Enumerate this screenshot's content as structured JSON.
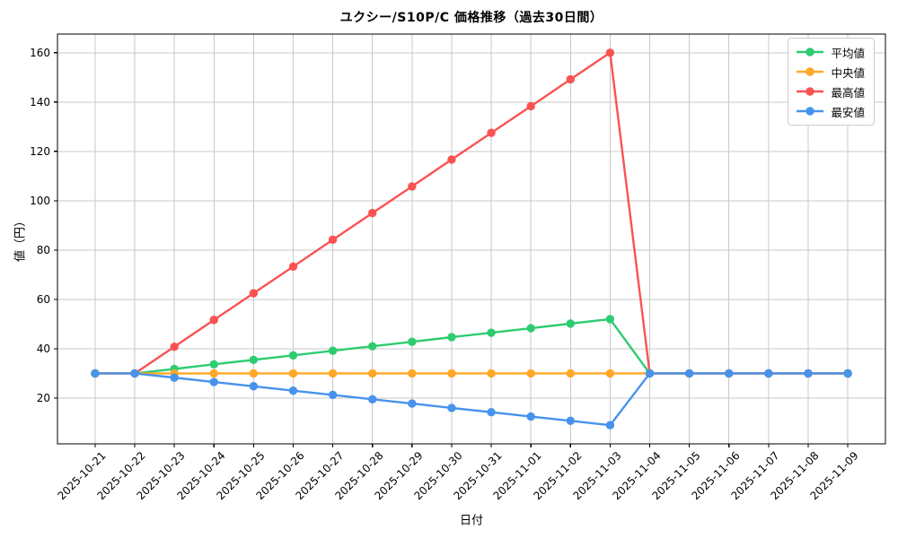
{
  "figure": {
    "background": "#ffffff",
    "spine_color": "#000000",
    "grid_color": "#c9c9c9",
    "tick_color": "#000000",
    "legend_border_color": "#cccccc"
  },
  "chart_data": {
    "type": "line",
    "title": "ユクシー/S10P/C 価格推移（過去30日間）",
    "xlabel": "日付",
    "ylabel": "値（円）",
    "categories": [
      "2025-10-21",
      "2025-10-22",
      "2025-10-23",
      "2025-10-24",
      "2025-10-25",
      "2025-10-26",
      "2025-10-27",
      "2025-10-28",
      "2025-10-29",
      "2025-10-30",
      "2025-10-31",
      "2025-11-01",
      "2025-11-02",
      "2025-11-03",
      "2025-11-04",
      "2025-11-05",
      "2025-11-06",
      "2025-11-07",
      "2025-11-08",
      "2025-11-09"
    ],
    "series": [
      {
        "name": "平均値",
        "color": "#2ecc71",
        "values": [
          30,
          30,
          31.8,
          33.7,
          35.5,
          37.3,
          39.2,
          41,
          42.8,
          44.7,
          46.5,
          48.3,
          50.2,
          52,
          30,
          30,
          30,
          30,
          30,
          30
        ]
      },
      {
        "name": "中央値",
        "color": "#ffa726",
        "values": [
          30,
          30,
          30,
          30,
          30,
          30,
          30,
          30,
          30,
          30,
          30,
          30,
          30,
          30,
          30,
          30,
          30,
          30,
          30,
          30
        ]
      },
      {
        "name": "最高値",
        "color": "#fa5252",
        "values": [
          30,
          30,
          40.8,
          51.7,
          62.5,
          73.3,
          84.2,
          95,
          105.8,
          116.7,
          127.5,
          138.3,
          149.2,
          160,
          30,
          30,
          30,
          30,
          30,
          30
        ]
      },
      {
        "name": "最安値",
        "color": "#4793eb",
        "values": [
          30,
          30,
          28.3,
          26.5,
          24.8,
          23,
          21.3,
          19.5,
          17.8,
          16,
          14.3,
          12.5,
          10.8,
          9,
          30,
          30,
          30,
          30,
          30,
          30
        ]
      }
    ],
    "yticks": [
      20,
      40,
      60,
      80,
      100,
      120,
      140,
      160
    ],
    "ylim": [
      1.45,
      167.55
    ],
    "grid": true,
    "legend_position": "upper-right",
    "marker": "circle",
    "line_width": 2.4,
    "marker_radius": 4.7
  }
}
